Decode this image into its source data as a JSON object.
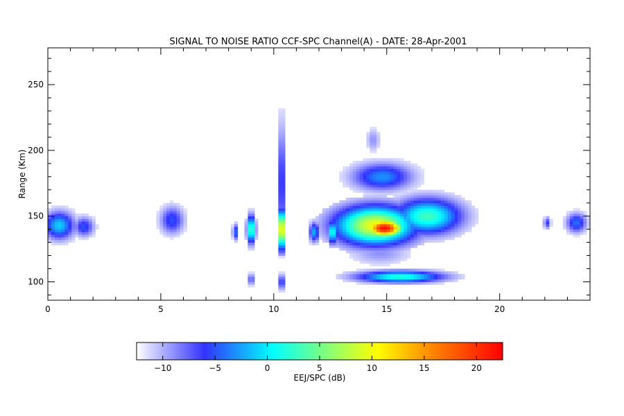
{
  "chart_data": {
    "type": "heatmap",
    "title": "SIGNAL TO NOISE RATIO CCF-SPC Channel(A) - DATE: 28-Apr-2001",
    "xlabel": "",
    "ylabel": "Range (Km)",
    "xlim": [
      0,
      24
    ],
    "ylim": [
      86,
      278
    ],
    "xticks": [
      0,
      5,
      10,
      15,
      20
    ],
    "yticks": [
      100,
      150,
      200,
      250
    ],
    "grid": false,
    "colorbar": {
      "label": "EEJ/SPC (dB)",
      "range": [
        -12.5,
        22.5
      ],
      "ticks": [
        -10,
        -5,
        0,
        5,
        10,
        15,
        20
      ],
      "colors": [
        "#ffffff",
        "#3232ff",
        "#00ffff",
        "#ffff00",
        "#ff8000",
        "#ff0000"
      ],
      "stops": [
        -12.5,
        -6,
        0.5,
        10.5,
        16,
        22.5
      ]
    },
    "blobs": [
      {
        "x": 0.5,
        "y": 143,
        "sx": 0.45,
        "sy": 7,
        "v": -1
      },
      {
        "x": 1.6,
        "y": 142,
        "sx": 0.3,
        "sy": 5,
        "v": -5
      },
      {
        "x": 5.5,
        "y": 147,
        "sx": 0.35,
        "sy": 7,
        "v": -5
      },
      {
        "x": 8.3,
        "y": 138,
        "sx": 0.08,
        "sy": 4,
        "v": -4
      },
      {
        "x": 9.0,
        "y": 140,
        "sx": 0.12,
        "sy": 7,
        "v": 5
      },
      {
        "x": 9.0,
        "y": 102,
        "sx": 0.12,
        "sy": 3,
        "v": -7
      },
      {
        "x": 10.35,
        "y": 140,
        "sx": 0.08,
        "sy": 10,
        "v": 21
      },
      {
        "x": 10.35,
        "y": 175,
        "sx": 0.06,
        "sy": 30,
        "v": 1
      },
      {
        "x": 10.35,
        "y": 100,
        "sx": 0.06,
        "sy": 4,
        "v": 0
      },
      {
        "x": 11.8,
        "y": 138,
        "sx": 0.15,
        "sy": 5,
        "v": -2
      },
      {
        "x": 12.6,
        "y": 138,
        "sx": 0.12,
        "sy": 6,
        "v": 3
      },
      {
        "x": 14.5,
        "y": 143,
        "sx": 1.2,
        "sy": 10,
        "v": 10
      },
      {
        "x": 14.9,
        "y": 141,
        "sx": 0.6,
        "sy": 5,
        "v": 22
      },
      {
        "x": 16.8,
        "y": 150,
        "sx": 1.0,
        "sy": 9,
        "v": 3
      },
      {
        "x": 14.8,
        "y": 180,
        "sx": 0.9,
        "sy": 7,
        "v": -3
      },
      {
        "x": 15.6,
        "y": 104,
        "sx": 1.3,
        "sy": 3,
        "v": 2
      },
      {
        "x": 14.7,
        "y": 122,
        "sx": 0.9,
        "sy": 6,
        "v": -9
      },
      {
        "x": 14.4,
        "y": 208,
        "sx": 0.2,
        "sy": 6,
        "v": -9
      },
      {
        "x": 22.1,
        "y": 145,
        "sx": 0.1,
        "sy": 3,
        "v": -6
      },
      {
        "x": 23.4,
        "y": 145,
        "sx": 0.3,
        "sy": 5,
        "v": -4
      }
    ]
  }
}
